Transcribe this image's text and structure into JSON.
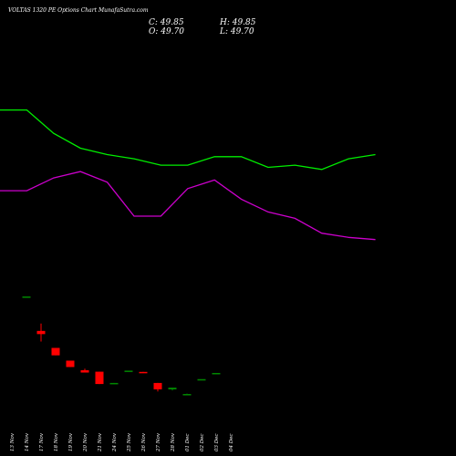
{
  "chart_data": {
    "type": "candlestick",
    "title": "VOLTAS 1320  PE Options  Chart MunafaSutra.com",
    "ohlc_labels": {
      "close": "C: 49.85",
      "high": "H: 49.85",
      "open": "O: 49.70",
      "low": "L: 49.70"
    },
    "x_ticks": [
      "13 Nov",
      "14 Nov",
      "17 Nov",
      "18 Nov",
      "19 Nov",
      "20 Nov",
      "21 Nov",
      "24 Nov",
      "25 Nov",
      "26 Nov",
      "27 Nov",
      "28 Nov",
      "01 Dec",
      "02 Dec",
      "03 Dec",
      "04 Dec"
    ],
    "candles": [
      {
        "date": "13 Nov",
        "open": null,
        "high": null,
        "low": null,
        "close": null
      },
      {
        "date": "14 Nov",
        "open": 82.0,
        "high": 82.0,
        "low": 82.0,
        "close": 82.2
      },
      {
        "date": "17 Nov",
        "open": 66.0,
        "high": 69.5,
        "low": 61.0,
        "close": 64.5
      },
      {
        "date": "18 Nov",
        "open": 58.0,
        "high": 58.0,
        "low": 54.5,
        "close": 54.5
      },
      {
        "date": "19 Nov",
        "open": 52.0,
        "high": 52.0,
        "low": 49.0,
        "close": 49.0
      },
      {
        "date": "20 Nov",
        "open": 47.5,
        "high": 48.2,
        "low": 46.4,
        "close": 46.4
      },
      {
        "date": "21 Nov",
        "open": 46.8,
        "high": 46.8,
        "low": 41.0,
        "close": 41.0
      },
      {
        "date": "24 Nov",
        "open": 41.0,
        "high": 41.5,
        "low": 41.0,
        "close": 41.5
      },
      {
        "date": "25 Nov",
        "open": 47.0,
        "high": 47.0,
        "low": 47.0,
        "close": 47.3
      },
      {
        "date": "26 Nov",
        "open": 46.7,
        "high": 46.7,
        "low": 46.3,
        "close": 46.5
      },
      {
        "date": "27 Nov",
        "open": 41.5,
        "high": 41.5,
        "low": 37.5,
        "close": 38.5
      },
      {
        "date": "28 Nov",
        "open": 38.5,
        "high": 39.3,
        "low": 38.0,
        "close": 39.3
      },
      {
        "date": "01 Dec",
        "open": 36.0,
        "high": 36.5,
        "low": 36.0,
        "close": 36.3
      },
      {
        "date": "02 Dec",
        "open": 43.0,
        "high": 43.0,
        "low": 43.0,
        "close": 43.3
      },
      {
        "date": "03 Dec",
        "open": 46.0,
        "high": 46.2,
        "low": 46.0,
        "close": 46.2
      },
      {
        "date": "04 Dec",
        "open": null,
        "high": null,
        "low": null,
        "close": null
      }
    ],
    "series": [
      {
        "values": [
          170,
          170,
          159,
          152,
          149,
          147,
          144,
          144,
          148,
          148,
          143,
          144,
          142,
          147,
          149
        ]
      },
      {
        "values": [
          132,
          132,
          138,
          141,
          136,
          120,
          120,
          133,
          137,
          128,
          122,
          119,
          112,
          110,
          109
        ]
      }
    ],
    "ylim": [
      20,
      196
    ],
    "colors": {
      "background": "#000000",
      "up": "#008800",
      "down": "#ff0000",
      "line_upper": "#00ee00",
      "line_lower": "#cc00cc",
      "text": "#ffffff"
    },
    "grid": false,
    "legend": "none"
  }
}
